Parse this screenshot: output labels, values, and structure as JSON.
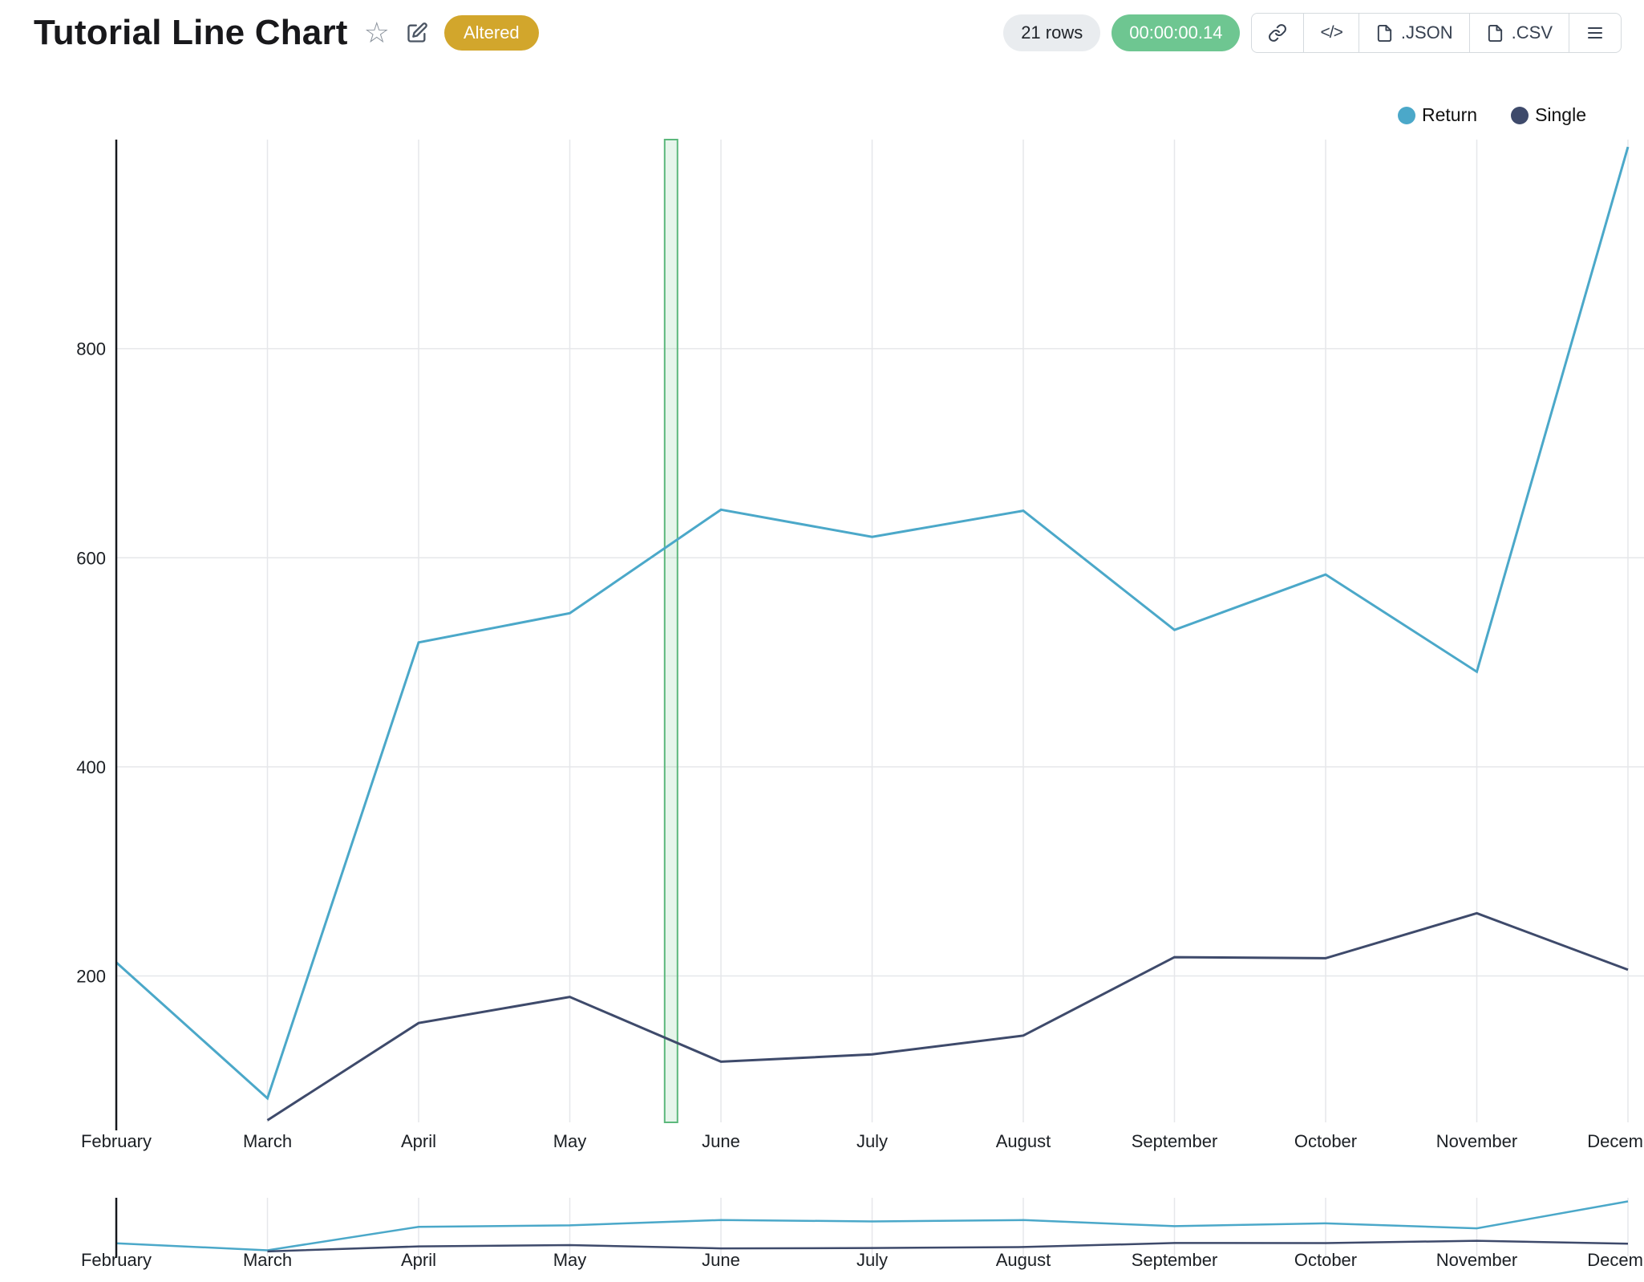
{
  "header": {
    "title": "Tutorial Line Chart",
    "badge": "Altered",
    "rows_label": "21 rows",
    "timer": "00:00:00.14",
    "buttons": {
      "code": "</>",
      "json": ".JSON",
      "csv": ".CSV"
    }
  },
  "chart_data": {
    "type": "line",
    "title": "Tutorial Line Chart",
    "categories": [
      "February",
      "March",
      "April",
      "May",
      "June",
      "July",
      "August",
      "September",
      "October",
      "November",
      "December"
    ],
    "series": [
      {
        "name": "Return",
        "color": "#4BA8C9",
        "values": [
          213,
          83,
          519,
          547,
          646,
          620,
          645,
          531,
          584,
          491,
          993
        ]
      },
      {
        "name": "Single",
        "color": "#3E4A6B",
        "values": [
          null,
          62,
          155,
          180,
          118,
          125,
          143,
          218,
          217,
          260,
          206
        ]
      }
    ],
    "ylim": [
      60,
      1000
    ],
    "yticks": [
      200,
      400,
      600,
      800
    ],
    "grid": true,
    "legend_position": "top-right",
    "highlight_band": {
      "between": [
        "May",
        "June"
      ],
      "category_index_position": 3.67,
      "color": "#5CB87C"
    },
    "minimap": {
      "visible": true,
      "shows_same_series": true
    }
  }
}
